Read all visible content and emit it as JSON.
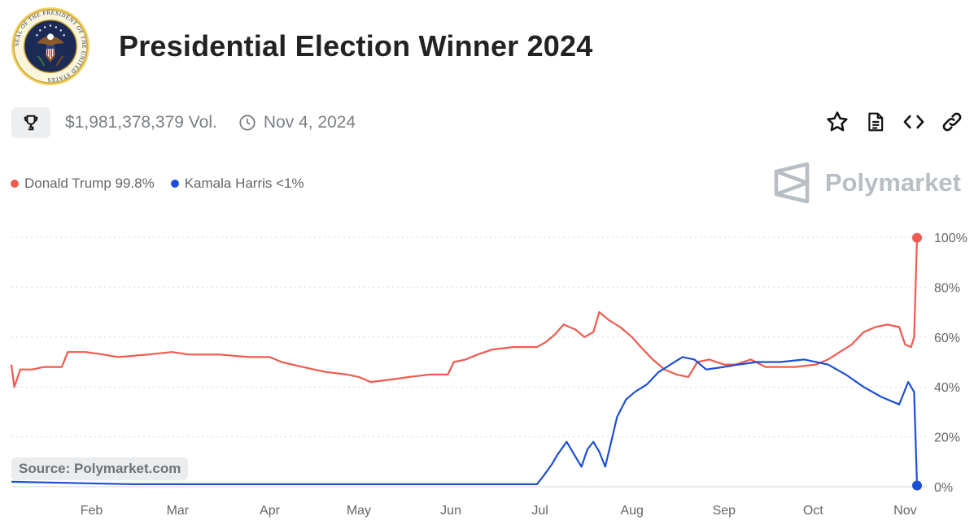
{
  "header": {
    "title": "Presidential Election Winner 2024",
    "seal_text": "SEAL OF THE PRESIDENT OF THE UNITED STATES"
  },
  "meta": {
    "volume": "$1,981,378,379 Vol.",
    "date": "Nov 4, 2024"
  },
  "icons": {
    "trophy": "trophy-icon",
    "clock": "clock-icon",
    "star": "star-icon",
    "document": "document-icon",
    "code": "code-icon",
    "link": "link-icon",
    "brand": "polymarket-logo-icon"
  },
  "legend": [
    {
      "label": "Donald Trump 99.8%",
      "color": "#ee5a4f"
    },
    {
      "label": "Kamala Harris <1%",
      "color": "#1d4fd6"
    }
  ],
  "brand": {
    "name": "Polymarket"
  },
  "source": "Source: Polymarket.com",
  "chart_data": {
    "type": "line",
    "xlabels": [
      "Feb",
      "Mar",
      "Apr",
      "May",
      "Jun",
      "Jul",
      "Aug",
      "Sep",
      "Oct",
      "Nov"
    ],
    "ytick_labels": [
      "100%",
      "80%",
      "60%",
      "40%",
      "20%",
      "0%"
    ],
    "ylim": [
      0,
      100
    ],
    "grid": true,
    "legend_position": "top-left",
    "series": [
      {
        "name": "Donald Trump",
        "color": "#ee5a4f",
        "points": [
          [
            "2024-01-05",
            49
          ],
          [
            "2024-01-06",
            40
          ],
          [
            "2024-01-08",
            47
          ],
          [
            "2024-01-12",
            47
          ],
          [
            "2024-01-16",
            48
          ],
          [
            "2024-01-22",
            48
          ],
          [
            "2024-01-24",
            54
          ],
          [
            "2024-01-30",
            54
          ],
          [
            "2024-02-05",
            53
          ],
          [
            "2024-02-10",
            52
          ],
          [
            "2024-02-20",
            53
          ],
          [
            "2024-02-28",
            54
          ],
          [
            "2024-03-05",
            53
          ],
          [
            "2024-03-15",
            53
          ],
          [
            "2024-03-25",
            52
          ],
          [
            "2024-04-01",
            52
          ],
          [
            "2024-04-05",
            50
          ],
          [
            "2024-04-12",
            48
          ],
          [
            "2024-04-20",
            46
          ],
          [
            "2024-04-27",
            45
          ],
          [
            "2024-05-01",
            44
          ],
          [
            "2024-05-05",
            42
          ],
          [
            "2024-05-12",
            43
          ],
          [
            "2024-05-18",
            44
          ],
          [
            "2024-05-25",
            45
          ],
          [
            "2024-05-31",
            45
          ],
          [
            "2024-06-02",
            50
          ],
          [
            "2024-06-06",
            51
          ],
          [
            "2024-06-10",
            53
          ],
          [
            "2024-06-15",
            55
          ],
          [
            "2024-06-22",
            56
          ],
          [
            "2024-06-30",
            56
          ],
          [
            "2024-07-03",
            58
          ],
          [
            "2024-07-06",
            61
          ],
          [
            "2024-07-09",
            65
          ],
          [
            "2024-07-13",
            63
          ],
          [
            "2024-07-16",
            60
          ],
          [
            "2024-07-19",
            62
          ],
          [
            "2024-07-21",
            70
          ],
          [
            "2024-07-24",
            67
          ],
          [
            "2024-07-28",
            64
          ],
          [
            "2024-08-01",
            60
          ],
          [
            "2024-08-04",
            56
          ],
          [
            "2024-08-08",
            51
          ],
          [
            "2024-08-12",
            47
          ],
          [
            "2024-08-16",
            45
          ],
          [
            "2024-08-20",
            44
          ],
          [
            "2024-08-23",
            50
          ],
          [
            "2024-08-27",
            51
          ],
          [
            "2024-09-01",
            49
          ],
          [
            "2024-09-05",
            49
          ],
          [
            "2024-09-10",
            51
          ],
          [
            "2024-09-15",
            48
          ],
          [
            "2024-09-20",
            48
          ],
          [
            "2024-09-25",
            48
          ],
          [
            "2024-10-02",
            49
          ],
          [
            "2024-10-06",
            51
          ],
          [
            "2024-10-10",
            54
          ],
          [
            "2024-10-14",
            57
          ],
          [
            "2024-10-18",
            62
          ],
          [
            "2024-10-22",
            64
          ],
          [
            "2024-10-26",
            65
          ],
          [
            "2024-10-30",
            64
          ],
          [
            "2024-11-01",
            57
          ],
          [
            "2024-11-03",
            56
          ],
          [
            "2024-11-04",
            60
          ],
          [
            "2024-11-05",
            99.8
          ]
        ]
      },
      {
        "name": "Kamala Harris",
        "color": "#1d4fd6",
        "points": [
          [
            "2024-01-05",
            2
          ],
          [
            "2024-02-15",
            1
          ],
          [
            "2024-03-15",
            1
          ],
          [
            "2024-04-15",
            1
          ],
          [
            "2024-05-15",
            1
          ],
          [
            "2024-06-20",
            1
          ],
          [
            "2024-06-30",
            1
          ],
          [
            "2024-07-02",
            4
          ],
          [
            "2024-07-05",
            9
          ],
          [
            "2024-07-07",
            13
          ],
          [
            "2024-07-10",
            18
          ],
          [
            "2024-07-13",
            12
          ],
          [
            "2024-07-15",
            8
          ],
          [
            "2024-07-17",
            15
          ],
          [
            "2024-07-19",
            18
          ],
          [
            "2024-07-21",
            14
          ],
          [
            "2024-07-23",
            8
          ],
          [
            "2024-07-25",
            18
          ],
          [
            "2024-07-27",
            28
          ],
          [
            "2024-07-30",
            35
          ],
          [
            "2024-08-02",
            38
          ],
          [
            "2024-08-06",
            41
          ],
          [
            "2024-08-10",
            46
          ],
          [
            "2024-08-14",
            49
          ],
          [
            "2024-08-18",
            52
          ],
          [
            "2024-08-22",
            51
          ],
          [
            "2024-08-26",
            47
          ],
          [
            "2024-09-01",
            48
          ],
          [
            "2024-09-06",
            49
          ],
          [
            "2024-09-12",
            50
          ],
          [
            "2024-09-20",
            50
          ],
          [
            "2024-09-28",
            51
          ],
          [
            "2024-10-06",
            49
          ],
          [
            "2024-10-12",
            45
          ],
          [
            "2024-10-18",
            40
          ],
          [
            "2024-10-24",
            36
          ],
          [
            "2024-10-30",
            33
          ],
          [
            "2024-11-02",
            42
          ],
          [
            "2024-11-04",
            38
          ],
          [
            "2024-11-05",
            0.5
          ]
        ]
      }
    ]
  }
}
